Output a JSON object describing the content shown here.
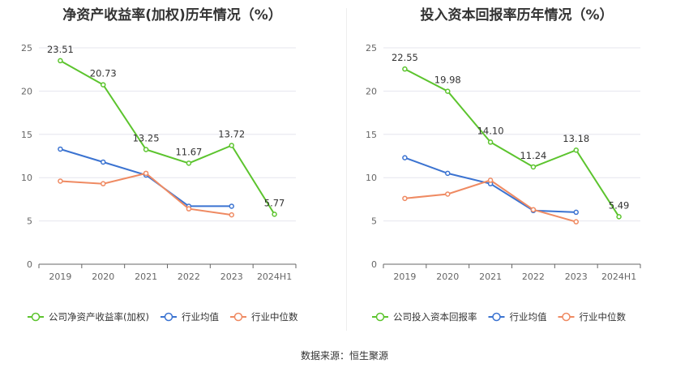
{
  "source_label": "数据来源：恒生聚源",
  "chart_data": [
    {
      "type": "line",
      "title": "净资产收益率(加权)历年情况（%）",
      "xlabel": "",
      "ylabel": "",
      "categories": [
        "2019",
        "2020",
        "2021",
        "2022",
        "2023",
        "2024H1"
      ],
      "ylim": [
        0,
        25
      ],
      "yticks": [
        0,
        5,
        10,
        15,
        20,
        25
      ],
      "grid": true,
      "legend_position": "bottom",
      "series": [
        {
          "name": "公司净资产收益率(加权)",
          "color": "#5cc42e",
          "values": [
            23.51,
            20.73,
            13.25,
            11.67,
            13.72,
            5.77
          ],
          "labels": [
            "23.51",
            "20.73",
            "13.25",
            "11.67",
            "13.72",
            "5.77"
          ]
        },
        {
          "name": "行业均值",
          "color": "#3b73d1",
          "values": [
            13.3,
            11.8,
            10.3,
            6.7,
            6.7,
            null
          ]
        },
        {
          "name": "行业中位数",
          "color": "#ef8a62",
          "values": [
            9.6,
            9.3,
            10.5,
            6.4,
            5.7,
            null
          ]
        }
      ]
    },
    {
      "type": "line",
      "title": "投入资本回报率历年情况（%）",
      "xlabel": "",
      "ylabel": "",
      "categories": [
        "2019",
        "2020",
        "2021",
        "2022",
        "2023",
        "2024H1"
      ],
      "ylim": [
        0,
        25
      ],
      "yticks": [
        0,
        5,
        10,
        15,
        20,
        25
      ],
      "grid": true,
      "legend_position": "bottom",
      "series": [
        {
          "name": "公司投入资本回报率",
          "color": "#5cc42e",
          "values": [
            22.55,
            19.98,
            14.1,
            11.24,
            13.18,
            5.49
          ],
          "labels": [
            "22.55",
            "19.98",
            "14.10",
            "11.24",
            "13.18",
            "5.49"
          ]
        },
        {
          "name": "行业均值",
          "color": "#3b73d1",
          "values": [
            12.3,
            10.5,
            9.3,
            6.2,
            6.0,
            null
          ]
        },
        {
          "name": "行业中位数",
          "color": "#ef8a62",
          "values": [
            7.6,
            8.1,
            9.7,
            6.3,
            4.9,
            null
          ]
        }
      ]
    }
  ]
}
